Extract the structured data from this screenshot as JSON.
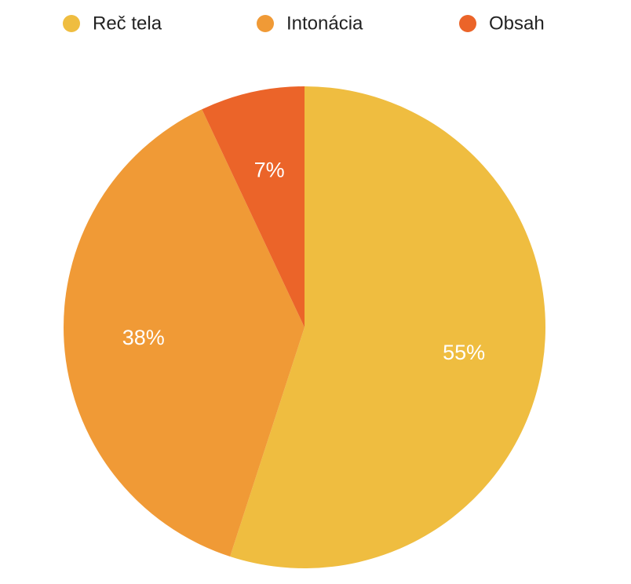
{
  "chart_data": {
    "type": "pie",
    "categories": [
      "Reč tela",
      "Intonácia",
      "Obsah"
    ],
    "values": [
      55,
      38,
      7
    ],
    "value_labels": [
      "55%",
      "38%",
      "7%"
    ],
    "colors": [
      "#EFBD40",
      "#F09A36",
      "#EB6429"
    ],
    "start_angle_deg": 0,
    "direction": "clockwise",
    "legend": {
      "placement": "top",
      "entries": [
        "Reč tela",
        "Intonácia",
        "Obsah"
      ]
    }
  }
}
